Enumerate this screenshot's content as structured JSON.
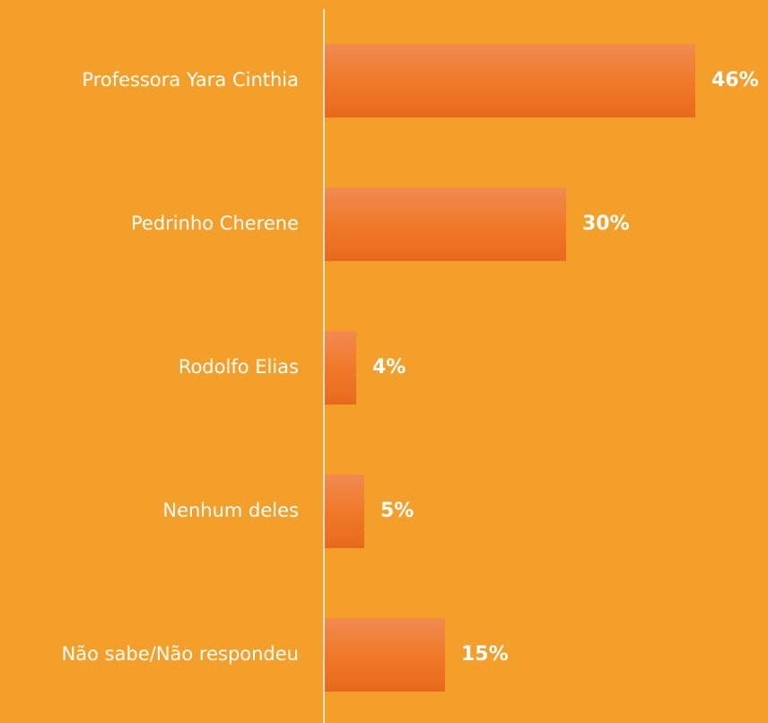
{
  "chart_data": {
    "type": "bar",
    "orientation": "horizontal",
    "categories": [
      "Professora Yara Cinthia",
      "Pedrinho Cherene",
      "Rodolfo Elias",
      "Nenhum deles",
      "Não sabe/Não respondeu"
    ],
    "values": [
      46,
      30,
      4,
      5,
      15
    ],
    "value_labels": [
      "46%",
      "30%",
      "4%",
      "5%",
      "15%"
    ],
    "color": "#ef7a2c",
    "xlim": [
      0,
      55
    ]
  }
}
